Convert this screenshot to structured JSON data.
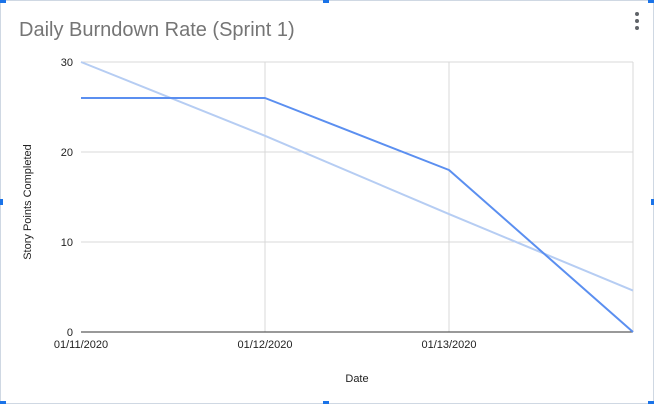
{
  "chart_data": {
    "type": "line",
    "title": "Daily Burndown Rate (Sprint 1)",
    "xlabel": "Date",
    "ylabel": "Story Points Completed",
    "categories": [
      "01/11/2020",
      "01/12/2020",
      "01/13/2020",
      ""
    ],
    "x_ticks": [
      "01/11/2020",
      "01/12/2020",
      "01/13/2020"
    ],
    "y_ticks": [
      0,
      10,
      20,
      30
    ],
    "ylim": [
      0,
      30
    ],
    "grid": true,
    "legend": "none",
    "series": [
      {
        "values": [
          26,
          26,
          18,
          0
        ],
        "color": "#5b8ff0"
      },
      {
        "values": [
          30,
          21.8,
          13.1,
          4.6
        ],
        "color": "#b6cdf3"
      }
    ]
  },
  "icons": {
    "menu": "more-vert-icon"
  }
}
